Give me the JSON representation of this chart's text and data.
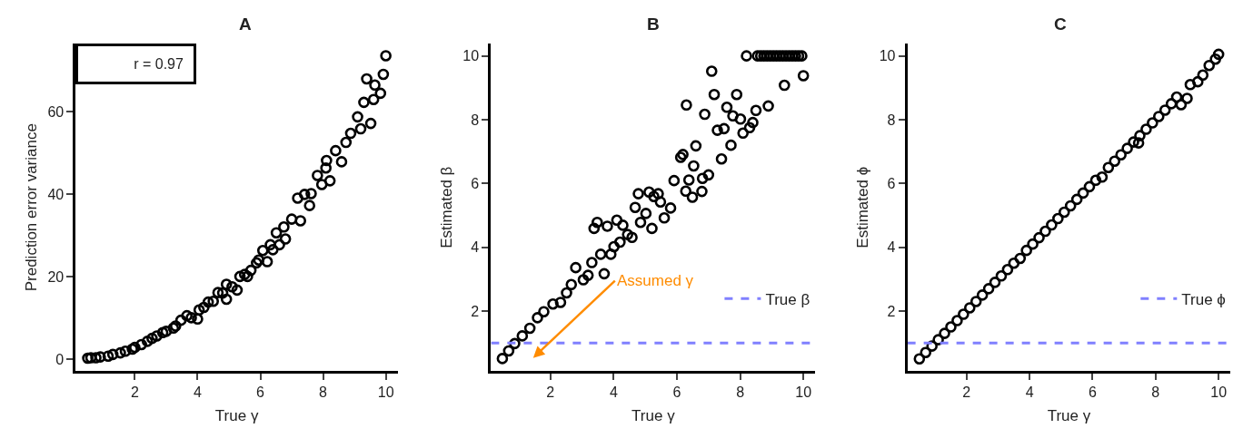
{
  "chart_data": [
    {
      "type": "scatter",
      "title": "A",
      "xlabel": "True γ",
      "ylabel": "Prediction error variance",
      "xlim": [
        0.12,
        10.38
      ],
      "ylim": [
        -2.9,
        76.4
      ],
      "xticks": [
        2,
        4,
        6,
        8,
        10
      ],
      "yticks": [
        0,
        20,
        40,
        60
      ],
      "marker": "circle",
      "legend": false,
      "annotations": [
        "r = 0.97"
      ],
      "series": [
        {
          "color": "#000000",
          "x": [
            0.5,
            0.6,
            0.76,
            0.9,
            1.15,
            1.3,
            1.54,
            1.7,
            1.92,
            2.0,
            2.21,
            2.4,
            2.55,
            2.7,
            2.89,
            3.0,
            3.23,
            3.3,
            3.47,
            3.66,
            3.8,
            4.0,
            4.05,
            4.2,
            4.34,
            4.5,
            4.65,
            4.8,
            4.92,
            4.92,
            5.1,
            5.26,
            5.35,
            5.5,
            5.59,
            5.7,
            5.88,
            5.95,
            6.08,
            6.22,
            6.32,
            6.4,
            6.51,
            6.61,
            6.75,
            6.8,
            7.0,
            7.19,
            7.28,
            7.41,
            7.57,
            7.62,
            7.82,
            7.96,
            8.09,
            8.11,
            8.22,
            8.4,
            8.59,
            8.73,
            8.88,
            9.1,
            9.2,
            9.3,
            9.39,
            9.52,
            9.61,
            9.65,
            9.83,
            9.92,
            10.0
          ],
          "values": [
            0.2,
            0.3,
            0.3,
            0.5,
            0.7,
            1.1,
            1.5,
            1.9,
            2.4,
            2.8,
            3.5,
            4.3,
            5.0,
            5.6,
            6.4,
            6.7,
            7.5,
            8.0,
            9.4,
            10.5,
            10.0,
            9.7,
            11.9,
            12.5,
            13.8,
            14.0,
            16.1,
            16.0,
            18.1,
            14.5,
            17.5,
            16.7,
            20.0,
            20.5,
            20.0,
            21.5,
            23.3,
            24.0,
            26.3,
            23.6,
            27.7,
            26.5,
            30.6,
            27.7,
            32.0,
            29.1,
            33.9,
            39.0,
            33.5,
            39.9,
            37.2,
            40.1,
            44.5,
            42.3,
            46.3,
            48.1,
            43.2,
            50.5,
            47.8,
            52.5,
            54.7,
            58.7,
            55.8,
            62.2,
            67.9,
            57.1,
            62.9,
            66.4,
            64.4,
            69.0,
            73.5
          ]
        }
      ]
    },
    {
      "type": "scatter",
      "title": "B",
      "xlabel": "True γ",
      "ylabel": "Estimated β",
      "xlim": [
        0.12,
        10.38
      ],
      "ylim": [
        0.12,
        10.38
      ],
      "xticks": [
        2,
        4,
        6,
        8,
        10
      ],
      "yticks": [
        2,
        4,
        6,
        8,
        10
      ],
      "marker": "circle",
      "legend": "right",
      "annotations": [
        "Assumed γ"
      ],
      "ref_lines": [
        {
          "axis": "y",
          "value": 1,
          "label": "True β",
          "color": "#8080ff",
          "line_style": "dashed"
        }
      ],
      "series": [
        {
          "color": "#000000",
          "x": [
            0.48,
            0.68,
            0.87,
            1.11,
            1.35,
            1.59,
            1.79,
            2.08,
            2.32,
            2.51,
            2.66,
            2.8,
            3.04,
            3.19,
            3.31,
            3.38,
            3.48,
            3.59,
            3.7,
            3.8,
            3.91,
            4.01,
            4.1,
            4.2,
            4.29,
            4.44,
            4.58,
            4.68,
            4.78,
            4.85,
            5.02,
            5.12,
            5.21,
            5.27,
            5.41,
            5.48,
            5.6,
            5.8,
            5.91,
            6.12,
            6.19,
            6.28,
            6.3,
            6.38,
            6.49,
            6.53,
            6.6,
            6.79,
            6.81,
            6.88,
            7.0,
            7.1,
            7.18,
            7.28,
            7.41,
            7.49,
            7.58,
            7.71,
            7.77,
            7.89,
            8.01,
            8.09,
            8.2,
            8.3,
            8.4,
            8.5,
            8.55,
            8.65,
            8.75,
            8.85,
            8.89,
            8.95,
            9.05,
            9.15,
            9.25,
            9.35,
            9.4,
            9.45,
            9.55,
            9.65,
            9.75,
            9.85,
            9.95,
            10.0
          ],
          "values": [
            0.51,
            0.75,
            0.98,
            1.22,
            1.46,
            1.79,
            1.98,
            2.22,
            2.27,
            2.57,
            2.83,
            3.36,
            2.98,
            3.12,
            3.52,
            4.59,
            4.78,
            3.78,
            3.17,
            4.66,
            3.78,
            4.02,
            4.85,
            4.16,
            4.69,
            4.4,
            4.31,
            5.25,
            5.68,
            4.78,
            5.06,
            5.73,
            4.59,
            5.59,
            5.68,
            5.42,
            4.92,
            5.23,
            6.09,
            6.82,
            6.91,
            5.76,
            8.46,
            6.11,
            5.57,
            6.55,
            7.18,
            5.75,
            6.16,
            8.17,
            6.27,
            9.52,
            8.79,
            7.67,
            6.77,
            7.72,
            8.39,
            7.2,
            8.12,
            8.79,
            8.02,
            7.58,
            10.0,
            7.75,
            7.91,
            8.29,
            10.0,
            10.0,
            10.0,
            10.0,
            8.43,
            10.0,
            10.0,
            10.0,
            10.0,
            10.0,
            9.08,
            10.0,
            10.0,
            10.0,
            10.0,
            10.0,
            10.0,
            9.38
          ]
        }
      ]
    },
    {
      "type": "scatter",
      "title": "C",
      "xlabel": "True γ",
      "ylabel": "Estimated ϕ",
      "xlim": [
        0.12,
        10.38
      ],
      "ylim": [
        0.12,
        10.38
      ],
      "xticks": [
        2,
        4,
        6,
        8,
        10
      ],
      "yticks": [
        2,
        4,
        6,
        8,
        10
      ],
      "marker": "circle",
      "legend": "right",
      "ref_lines": [
        {
          "axis": "y",
          "value": 1,
          "label": "True ϕ",
          "color": "#8080ff",
          "line_style": "dashed"
        }
      ],
      "series": [
        {
          "color": "#000000",
          "x": [
            0.5,
            0.7,
            0.9,
            1.1,
            1.3,
            1.5,
            1.7,
            1.9,
            2.1,
            2.3,
            2.5,
            2.7,
            2.9,
            3.1,
            3.3,
            3.5,
            3.7,
            3.9,
            4.1,
            4.3,
            4.5,
            4.7,
            4.9,
            5.1,
            5.3,
            5.5,
            5.7,
            5.9,
            6.1,
            6.3,
            6.5,
            6.7,
            6.9,
            7.1,
            7.3,
            7.46,
            7.5,
            7.7,
            7.9,
            8.1,
            8.3,
            8.5,
            8.67,
            8.81,
            9.0,
            9.1,
            9.34,
            9.5,
            9.7,
            9.9,
            10.0
          ],
          "values": [
            0.5,
            0.7,
            0.9,
            1.1,
            1.3,
            1.5,
            1.7,
            1.9,
            2.1,
            2.3,
            2.5,
            2.7,
            2.9,
            3.1,
            3.3,
            3.5,
            3.65,
            3.9,
            4.1,
            4.3,
            4.5,
            4.7,
            4.9,
            5.1,
            5.3,
            5.5,
            5.7,
            5.9,
            6.1,
            6.2,
            6.5,
            6.7,
            6.9,
            7.1,
            7.3,
            7.27,
            7.5,
            7.7,
            7.9,
            8.1,
            8.3,
            8.5,
            8.71,
            8.47,
            8.67,
            9.1,
            9.19,
            9.4,
            9.7,
            9.9,
            10.05
          ]
        }
      ]
    }
  ]
}
